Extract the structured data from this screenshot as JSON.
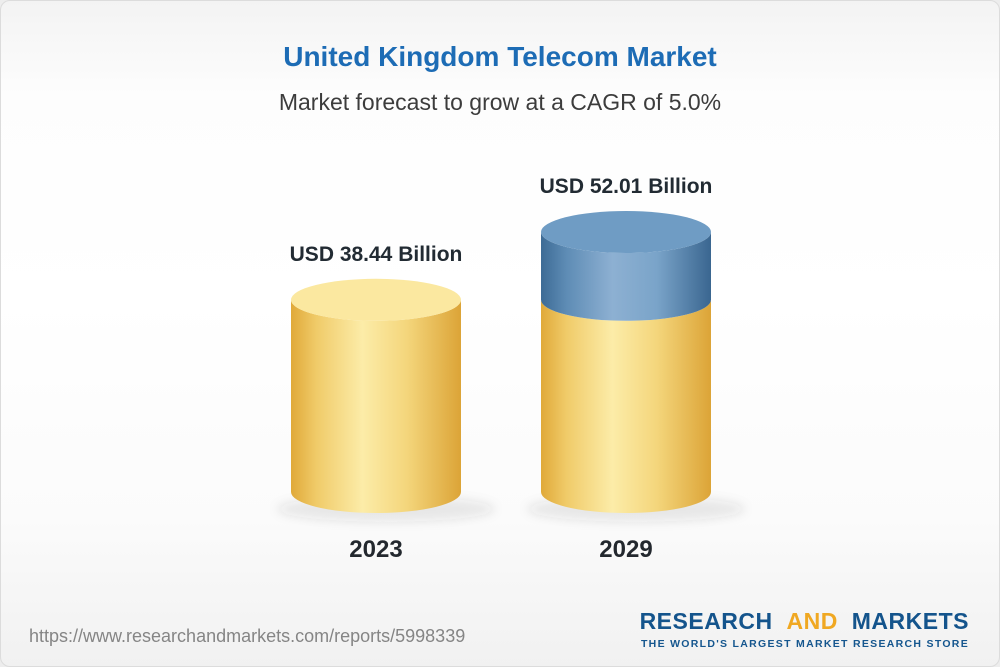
{
  "header": {
    "title": "United Kingdom Telecom Market",
    "subtitle": "Market forecast to grow at a CAGR of 5.0%"
  },
  "chart_data": {
    "type": "bar",
    "variant": "3d-cylinder-stacked",
    "title": "United Kingdom Telecom Market",
    "subtitle": "Market forecast to grow at a CAGR of 5.0%",
    "unit": "USD Billion",
    "cagr_percent": 5.0,
    "categories": [
      "2023",
      "2029"
    ],
    "values": [
      38.44,
      52.01
    ],
    "value_labels": [
      "USD 38.44 Billion",
      "USD 52.01 Billion"
    ],
    "ylim": [
      0,
      60
    ],
    "grid": false,
    "legend": false,
    "bars": [
      {
        "category": "2023",
        "label": "USD 38.44 Billion",
        "segments": [
          {
            "value": 38.44,
            "color": "yellow"
          }
        ]
      },
      {
        "category": "2029",
        "label": "USD 52.01 Billion",
        "segments": [
          {
            "value": 38.44,
            "color": "yellow"
          },
          {
            "value": 13.57,
            "color": "blue"
          }
        ]
      }
    ],
    "palette": {
      "yellow": {
        "body": [
          [
            "0%",
            "#e0a939"
          ],
          [
            "15%",
            "#f0cb69"
          ],
          [
            "42%",
            "#fceca8"
          ],
          [
            "68%",
            "#f4d67c"
          ],
          [
            "100%",
            "#dca437"
          ]
        ],
        "cap": "#fbe8a0"
      },
      "blue": {
        "body": [
          [
            "0%",
            "#3d6b95"
          ],
          [
            "15%",
            "#5e8cb5"
          ],
          [
            "42%",
            "#8db0d2"
          ],
          [
            "68%",
            "#7aa4c9"
          ],
          [
            "100%",
            "#3a6690"
          ]
        ],
        "cap": "#6f9cc4"
      }
    },
    "text_colors": {
      "title": "#1d6cb5",
      "subtitle": "#3c3c3c",
      "value_label": "#222b33",
      "category_label": "#23282e"
    }
  },
  "footer": {
    "url": "https://www.researchandmarkets.com/reports/5998339",
    "logo": {
      "research": "RESEARCH",
      "and": "AND",
      "markets": "MARKETS",
      "tagline": "THE WORLD'S LARGEST MARKET RESEARCH STORE",
      "blue_color": "#14548c",
      "gold_color": "#f0a822"
    }
  }
}
